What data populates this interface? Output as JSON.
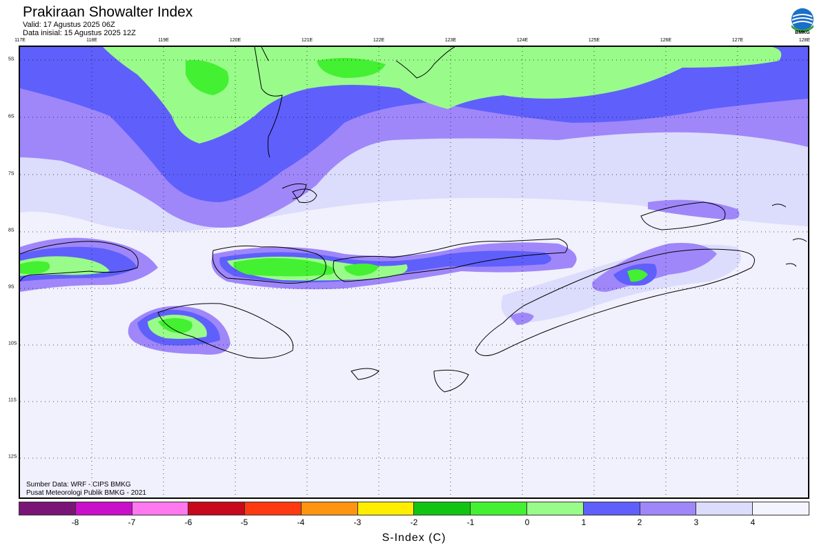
{
  "header": {
    "title": "Prakiraan Showalter Index",
    "valid": "Valid: 17 Agustus 2025 06Z",
    "init": "Data inisial: 15 Agustus 2025 12Z"
  },
  "logo": {
    "icon": "bmkg-logo-icon",
    "text": "BMKG"
  },
  "map": {
    "lon_labels": [
      "117E",
      "118E",
      "119E",
      "120E",
      "121E",
      "122E",
      "123E",
      "124E",
      "125E",
      "126E",
      "127E",
      "128E"
    ],
    "lat_labels": [
      "5S",
      "6S",
      "7S",
      "8S",
      "9S",
      "10S",
      "11S",
      "12S"
    ],
    "ocean_color": "#f1f0fd",
    "coastline_color": "#000000"
  },
  "credits": {
    "source": "Sumber Data: WRF - CIPS BMKG",
    "org": "Pusat Meteorologi Publik BMKG - 2021"
  },
  "colorbar": {
    "title": "S-Index (C)",
    "colors": [
      "#7b1477",
      "#c90fc9",
      "#ff78f0",
      "#c8081b",
      "#ff3a10",
      "#ff9410",
      "#ffee00",
      "#12c412",
      "#44f032",
      "#99fc8a",
      "#5f5ffc",
      "#9f87fa",
      "#dcdcfc",
      "#f4f4fe"
    ],
    "ticks": [
      "-8",
      "-7",
      "-6",
      "-5",
      "-4",
      "-3",
      "-2",
      "-1",
      "0",
      "1",
      "2",
      "3",
      "4"
    ]
  }
}
